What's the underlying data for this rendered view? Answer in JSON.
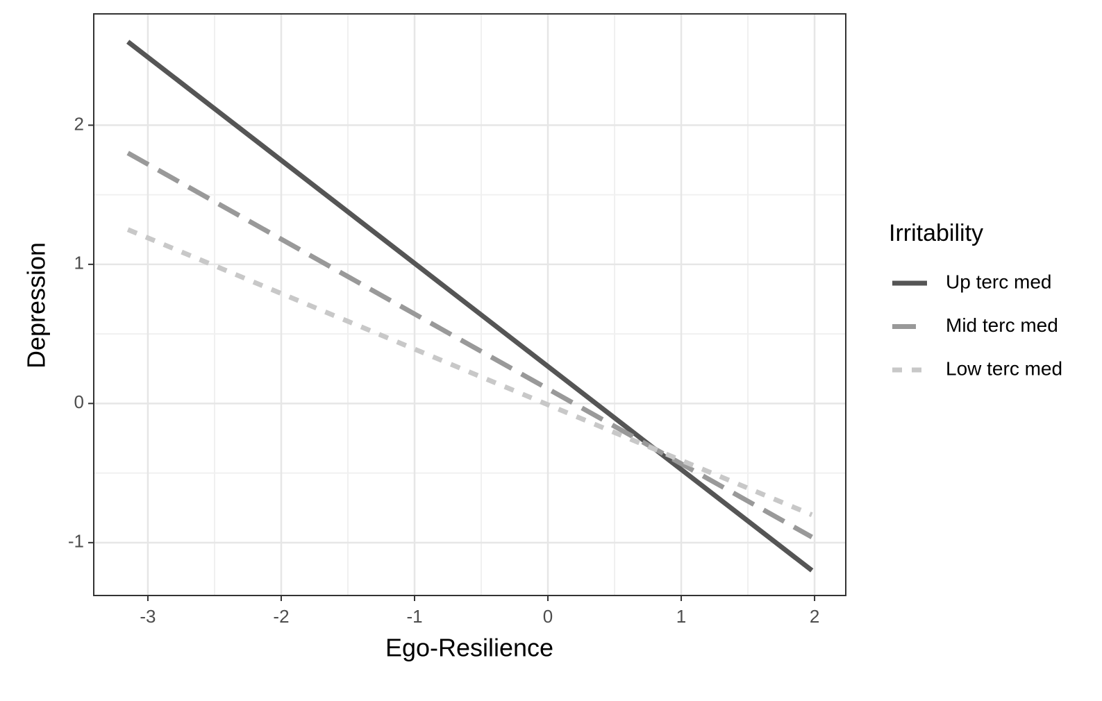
{
  "chart_data": {
    "type": "line",
    "x_label": "Ego-Resilience",
    "y_label": "Depression",
    "x": [
      -3.15,
      1.98
    ],
    "series": [
      {
        "name": "Up terc med",
        "color": "#555555",
        "dash": "solid",
        "values": [
          2.6,
          -1.2
        ]
      },
      {
        "name": "Mid terc med",
        "color": "#999999",
        "dash": "dashed",
        "values": [
          1.8,
          -0.96
        ]
      },
      {
        "name": "Low terc med",
        "color": "#c8c8c8",
        "dash": "dotted",
        "values": [
          1.25,
          -0.8
        ]
      }
    ],
    "xlim": [
      -3.406,
      2.234
    ],
    "ylim": [
      -1.38,
      2.8
    ],
    "xticks": [
      -3,
      -2,
      -1,
      0,
      1,
      2
    ],
    "yticks": [
      -1,
      0,
      1,
      2
    ],
    "grid": true,
    "legend_title": "Irritability",
    "legend_position": "right"
  }
}
